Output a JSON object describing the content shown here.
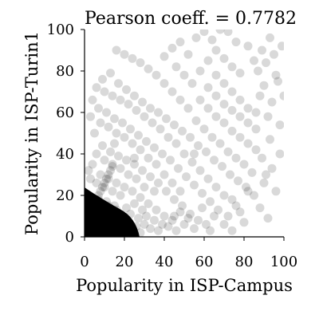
{
  "chart_data": {
    "type": "scatter",
    "title": "Pearson coeff. = 0.7782",
    "xlabel": "Popularity in ISP-Campus",
    "ylabel": "Popularity in ISP-Turin1",
    "xlim": [
      0,
      100
    ],
    "ylim": [
      0,
      100
    ],
    "xticks": [
      "0",
      "20",
      "40",
      "60",
      "80",
      "100"
    ],
    "yticks": [
      "0",
      "20",
      "40",
      "60",
      "80",
      "100"
    ],
    "grid": false,
    "marker_color": "#000000",
    "marker_opacity": 0.15,
    "points": [
      [
        2,
        1
      ],
      [
        3,
        2
      ],
      [
        4,
        1
      ],
      [
        5,
        3
      ],
      [
        6,
        2
      ],
      [
        1,
        4
      ],
      [
        2,
        6
      ],
      [
        3,
        5
      ],
      [
        5,
        6
      ],
      [
        7,
        4
      ],
      [
        8,
        2
      ],
      [
        9,
        5
      ],
      [
        10,
        3
      ],
      [
        11,
        6
      ],
      [
        12,
        2
      ],
      [
        4,
        8
      ],
      [
        6,
        9
      ],
      [
        8,
        8
      ],
      [
        10,
        10
      ],
      [
        12,
        7
      ],
      [
        14,
        4
      ],
      [
        15,
        8
      ],
      [
        16,
        3
      ],
      [
        18,
        6
      ],
      [
        20,
        4
      ],
      [
        13,
        12
      ],
      [
        9,
        14
      ],
      [
        5,
        12
      ],
      [
        3,
        16
      ],
      [
        2,
        20
      ],
      [
        7,
        18
      ],
      [
        11,
        17
      ],
      [
        15,
        15
      ],
      [
        17,
        11
      ],
      [
        19,
        9
      ],
      [
        22,
        7
      ],
      [
        24,
        3
      ],
      [
        26,
        5
      ],
      [
        28,
        2
      ],
      [
        30,
        6
      ],
      [
        21,
        14
      ],
      [
        23,
        11
      ],
      [
        25,
        16
      ],
      [
        27,
        9
      ],
      [
        29,
        13
      ],
      [
        31,
        10
      ],
      [
        33,
        4
      ],
      [
        35,
        8
      ],
      [
        37,
        3
      ],
      [
        39,
        6
      ],
      [
        18,
        20
      ],
      [
        14,
        22
      ],
      [
        10,
        24
      ],
      [
        6,
        26
      ],
      [
        3,
        28
      ],
      [
        8,
        30
      ],
      [
        12,
        28
      ],
      [
        16,
        26
      ],
      [
        20,
        24
      ],
      [
        24,
        22
      ],
      [
        28,
        19
      ],
      [
        32,
        16
      ],
      [
        36,
        13
      ],
      [
        40,
        10
      ],
      [
        42,
        5
      ],
      [
        44,
        8
      ],
      [
        46,
        3
      ],
      [
        48,
        12
      ],
      [
        50,
        6
      ],
      [
        52,
        9
      ],
      [
        30,
        24
      ],
      [
        26,
        28
      ],
      [
        22,
        30
      ],
      [
        18,
        33
      ],
      [
        14,
        35
      ],
      [
        10,
        37
      ],
      [
        6,
        40
      ],
      [
        4,
        35
      ],
      [
        2,
        32
      ],
      [
        9,
        44
      ],
      [
        13,
        41
      ],
      [
        17,
        39
      ],
      [
        21,
        37
      ],
      [
        25,
        35
      ],
      [
        29,
        32
      ],
      [
        33,
        29
      ],
      [
        37,
        26
      ],
      [
        41,
        22
      ],
      [
        45,
        18
      ],
      [
        49,
        15
      ],
      [
        53,
        11
      ],
      [
        55,
        4
      ],
      [
        57,
        8
      ],
      [
        59,
        14
      ],
      [
        61,
        6
      ],
      [
        63,
        3
      ],
      [
        65,
        10
      ],
      [
        40,
        30
      ],
      [
        44,
        26
      ],
      [
        48,
        22
      ],
      [
        36,
        35
      ],
      [
        32,
        38
      ],
      [
        28,
        42
      ],
      [
        24,
        45
      ],
      [
        20,
        48
      ],
      [
        16,
        50
      ],
      [
        12,
        53
      ],
      [
        8,
        55
      ],
      [
        5,
        50
      ],
      [
        3,
        58
      ],
      [
        7,
        62
      ],
      [
        11,
        60
      ],
      [
        15,
        57
      ],
      [
        19,
        55
      ],
      [
        23,
        52
      ],
      [
        27,
        49
      ],
      [
        31,
        46
      ],
      [
        35,
        43
      ],
      [
        39,
        40
      ],
      [
        43,
        37
      ],
      [
        47,
        33
      ],
      [
        51,
        29
      ],
      [
        55,
        25
      ],
      [
        59,
        21
      ],
      [
        63,
        17
      ],
      [
        67,
        13
      ],
      [
        70,
        6
      ],
      [
        72,
        10
      ],
      [
        74,
        3
      ],
      [
        76,
        15
      ],
      [
        50,
        40
      ],
      [
        54,
        36
      ],
      [
        58,
        32
      ],
      [
        62,
        28
      ],
      [
        66,
        24
      ],
      [
        70,
        20
      ],
      [
        74,
        18
      ],
      [
        78,
        12
      ],
      [
        80,
        7
      ],
      [
        82,
        22
      ],
      [
        46,
        45
      ],
      [
        42,
        48
      ],
      [
        38,
        52
      ],
      [
        34,
        55
      ],
      [
        30,
        58
      ],
      [
        26,
        61
      ],
      [
        22,
        64
      ],
      [
        18,
        66
      ],
      [
        14,
        68
      ],
      [
        10,
        70
      ],
      [
        6,
        72
      ],
      [
        4,
        66
      ],
      [
        9,
        76
      ],
      [
        13,
        79
      ],
      [
        17,
        74
      ],
      [
        21,
        71
      ],
      [
        25,
        68
      ],
      [
        29,
        65
      ],
      [
        33,
        62
      ],
      [
        37,
        60
      ],
      [
        41,
        57
      ],
      [
        45,
        54
      ],
      [
        49,
        51
      ],
      [
        53,
        48
      ],
      [
        57,
        44
      ],
      [
        61,
        41
      ],
      [
        65,
        37
      ],
      [
        69,
        34
      ],
      [
        73,
        30
      ],
      [
        77,
        27
      ],
      [
        81,
        24
      ],
      [
        85,
        20
      ],
      [
        88,
        14
      ],
      [
        90,
        26
      ],
      [
        92,
        9
      ],
      [
        94,
        33
      ],
      [
        56,
        56
      ],
      [
        60,
        52
      ],
      [
        64,
        48
      ],
      [
        68,
        45
      ],
      [
        72,
        41
      ],
      [
        76,
        38
      ],
      [
        80,
        35
      ],
      [
        84,
        31
      ],
      [
        86,
        42
      ],
      [
        89,
        38
      ],
      [
        91,
        30
      ],
      [
        93,
        47
      ],
      [
        96,
        22
      ],
      [
        98,
        40
      ],
      [
        52,
        62
      ],
      [
        48,
        66
      ],
      [
        44,
        70
      ],
      [
        40,
        74
      ],
      [
        36,
        78
      ],
      [
        32,
        81
      ],
      [
        28,
        84
      ],
      [
        24,
        86
      ],
      [
        20,
        88
      ],
      [
        16,
        90
      ],
      [
        58,
        66
      ],
      [
        62,
        62
      ],
      [
        66,
        58
      ],
      [
        70,
        55
      ],
      [
        74,
        51
      ],
      [
        78,
        48
      ],
      [
        82,
        45
      ],
      [
        86,
        52
      ],
      [
        62,
        72
      ],
      [
        66,
        68
      ],
      [
        70,
        64
      ],
      [
        74,
        61
      ],
      [
        78,
        58
      ],
      [
        82,
        55
      ],
      [
        66,
        78
      ],
      [
        70,
        74
      ],
      [
        74,
        70
      ],
      [
        78,
        66
      ],
      [
        82,
        62
      ],
      [
        86,
        60
      ],
      [
        46,
        82
      ],
      [
        50,
        78
      ],
      [
        54,
        74
      ],
      [
        58,
        80
      ],
      [
        62,
        85
      ],
      [
        66,
        90
      ],
      [
        70,
        86
      ],
      [
        74,
        82
      ],
      [
        78,
        79
      ],
      [
        82,
        92
      ],
      [
        40,
        87
      ],
      [
        44,
        91
      ],
      [
        48,
        94
      ],
      [
        52,
        88
      ],
      [
        56,
        96
      ],
      [
        60,
        99
      ],
      [
        64,
        95
      ],
      [
        68,
        100
      ],
      [
        72,
        99
      ],
      [
        76,
        94
      ],
      [
        88,
        68
      ],
      [
        90,
        73
      ],
      [
        92,
        58
      ],
      [
        94,
        65
      ],
      [
        96,
        78
      ],
      [
        98,
        54
      ],
      [
        100,
        68
      ],
      [
        85,
        85
      ],
      [
        87,
        80
      ],
      [
        89,
        90
      ],
      [
        91,
        84
      ],
      [
        93,
        96
      ],
      [
        95,
        88
      ],
      [
        97,
        75
      ],
      [
        99,
        92
      ],
      [
        55,
        40
      ],
      [
        35,
        22
      ],
      [
        25,
        38
      ],
      [
        15,
        45
      ],
      [
        45,
        10
      ],
      [
        7,
        8
      ],
      [
        9,
        9
      ],
      [
        11,
        11
      ],
      [
        13,
        6
      ],
      [
        6,
        14
      ],
      [
        8,
        16
      ],
      [
        10,
        12
      ],
      [
        12,
        15
      ],
      [
        14,
        10
      ],
      [
        16,
        13
      ],
      [
        2,
        10
      ],
      [
        4,
        12
      ],
      [
        6,
        5
      ],
      [
        8,
        6
      ],
      [
        10,
        7
      ],
      [
        3,
        9
      ],
      [
        5,
        11
      ],
      [
        7,
        13
      ],
      [
        9,
        3
      ],
      [
        11,
        4
      ],
      [
        1,
        2
      ],
      [
        2,
        3
      ],
      [
        3,
        1
      ],
      [
        4,
        4
      ],
      [
        5,
        5
      ],
      [
        6,
        6
      ],
      [
        1,
        7
      ],
      [
        2,
        8
      ],
      [
        3,
        12
      ],
      [
        4,
        14
      ],
      [
        5,
        16
      ],
      [
        6,
        18
      ],
      [
        7,
        20
      ],
      [
        8,
        22
      ],
      [
        9,
        24
      ],
      [
        10,
        26
      ],
      [
        11,
        28
      ],
      [
        12,
        30
      ],
      [
        13,
        32
      ],
      [
        14,
        34
      ]
    ]
  }
}
